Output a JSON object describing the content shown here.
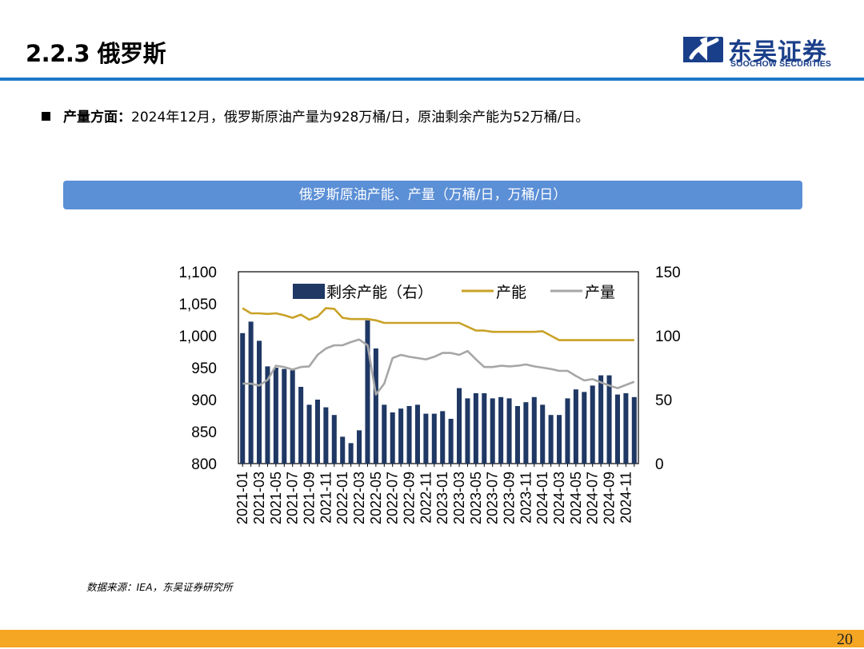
{
  "header": {
    "section_title": "2.2.3 俄罗斯",
    "logo_cn": "东吴证券",
    "logo_en": "SOOCHOW SECURITIES"
  },
  "bullet": {
    "label": "产量方面：",
    "text": "2024年12月，俄罗斯原油产量为928万桶/日，原油剩余产能为52万桶/日。"
  },
  "chart_title": "俄罗斯原油产能、产量（万桶/日，万桶/日）",
  "source": "数据来源：IEA，东吴证券研究所",
  "page_number": "20",
  "colors": {
    "accent_blue": "#1f78c8",
    "banner_blue": "#5b8fd6",
    "bar_navy": "#1f3864",
    "capacity_gold": "#c9a227",
    "production_gray": "#a6a6a6",
    "footer_orange": "#f5a623"
  },
  "chart_data": {
    "type": "bar+line",
    "x": [
      "2021-01",
      "2021-02",
      "2021-03",
      "2021-04",
      "2021-05",
      "2021-06",
      "2021-07",
      "2021-08",
      "2021-09",
      "2021-10",
      "2021-11",
      "2021-12",
      "2022-01",
      "2022-02",
      "2022-03",
      "2022-04",
      "2022-05",
      "2022-06",
      "2022-07",
      "2022-08",
      "2022-09",
      "2022-10",
      "2022-11",
      "2022-12",
      "2023-01",
      "2023-02",
      "2023-03",
      "2023-04",
      "2023-05",
      "2023-06",
      "2023-07",
      "2023-08",
      "2023-09",
      "2023-10",
      "2023-11",
      "2023-12",
      "2024-01",
      "2024-02",
      "2024-03",
      "2024-04",
      "2024-05",
      "2024-06",
      "2024-07",
      "2024-08",
      "2024-09",
      "2024-10",
      "2024-11",
      "2024-12"
    ],
    "x_tick_labels": [
      "2021-01",
      "2021-03",
      "2021-05",
      "2021-07",
      "2021-09",
      "2021-11",
      "2022-01",
      "2022-03",
      "2022-05",
      "2022-07",
      "2022-09",
      "2022-11",
      "2023-01",
      "2023-03",
      "2023-05",
      "2023-07",
      "2023-09",
      "2023-11",
      "2024-01",
      "2024-03",
      "2024-05",
      "2024-07",
      "2024-09",
      "2024-11"
    ],
    "left_axis": {
      "ylim": [
        800,
        1100
      ],
      "ticks": [
        "800",
        "850",
        "900",
        "950",
        "1,000",
        "1,050",
        "1,100"
      ]
    },
    "right_axis": {
      "ylim": [
        0,
        150
      ],
      "ticks": [
        "0",
        "50",
        "100",
        "150"
      ]
    },
    "legend": [
      "剩余产能（右）",
      "产能",
      "产量"
    ],
    "series": [
      {
        "name": "剩余产能（右）",
        "type": "bar",
        "axis": "right",
        "values": [
          102,
          111,
          96,
          76,
          75,
          74,
          73,
          60,
          46,
          50,
          44,
          38,
          21,
          16,
          26,
          112,
          90,
          46,
          40,
          43,
          45,
          46,
          39,
          39,
          41,
          35,
          59,
          51,
          55,
          55,
          51,
          52,
          51,
          45,
          48,
          52,
          46,
          38,
          38,
          51,
          58,
          56,
          61,
          69,
          69,
          54,
          55,
          52
        ]
      },
      {
        "name": "产能",
        "type": "line",
        "axis": "left",
        "values": [
          1043,
          1035,
          1035,
          1034,
          1035,
          1032,
          1028,
          1033,
          1025,
          1030,
          1043,
          1042,
          1028,
          1026,
          1026,
          1026,
          1024,
          1020,
          1020,
          1020,
          1020,
          1020,
          1020,
          1020,
          1020,
          1020,
          1020,
          1014,
          1008,
          1008,
          1006,
          1006,
          1006,
          1006,
          1006,
          1006,
          1007,
          1000,
          993,
          993,
          993,
          993,
          993,
          993,
          993,
          993,
          993,
          993
        ]
      },
      {
        "name": "产量",
        "type": "line",
        "axis": "left",
        "values": [
          925,
          925,
          922,
          931,
          953,
          951,
          947,
          951,
          952,
          970,
          980,
          985,
          985,
          990,
          994,
          985,
          908,
          925,
          965,
          970,
          967,
          965,
          963,
          967,
          973,
          973,
          970,
          976,
          963,
          951,
          951,
          953,
          952,
          953,
          955,
          952,
          950,
          948,
          945,
          945,
          937,
          930,
          932,
          927,
          922,
          918,
          923,
          928
        ]
      }
    ]
  }
}
